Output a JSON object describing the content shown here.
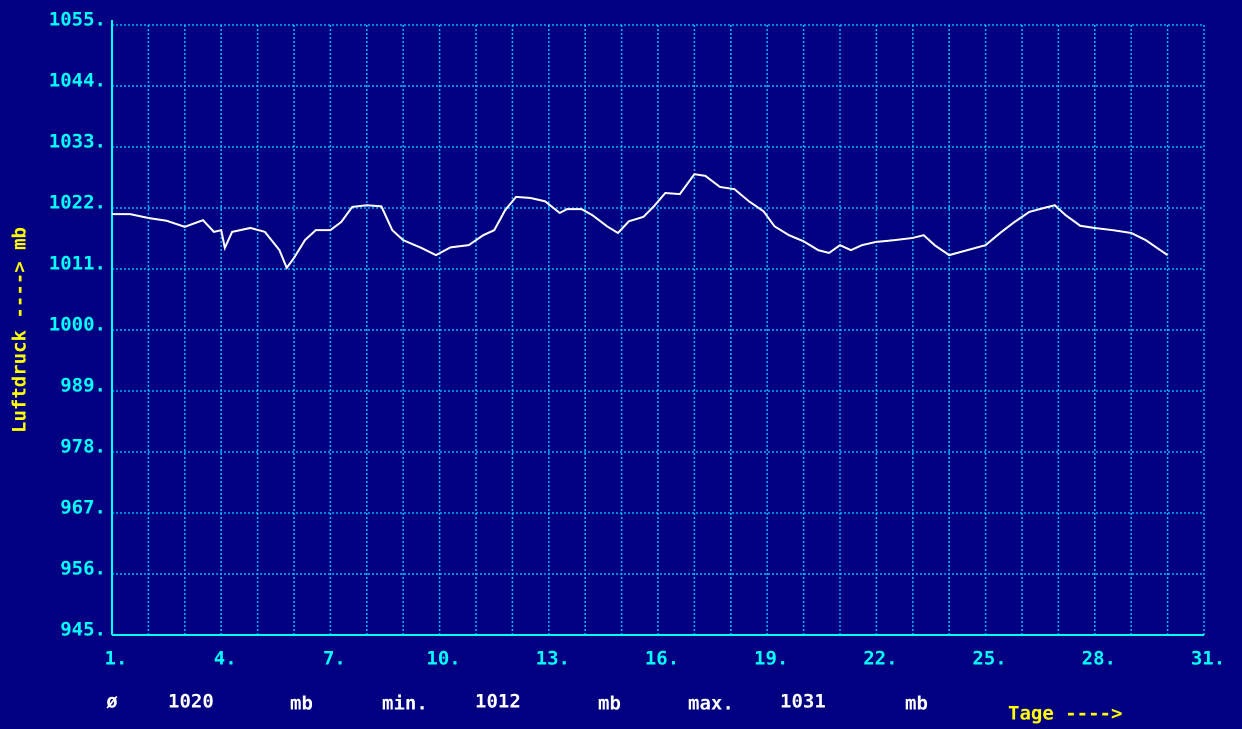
{
  "chart_data": {
    "type": "line",
    "y_axis_label": "Luftdruck ----> mb",
    "x_axis_label": "Tage ---->",
    "xlim": [
      1,
      31
    ],
    "xticks": [
      {
        "value": 1,
        "label": "1."
      },
      {
        "value": 4,
        "label": "4."
      },
      {
        "value": 7,
        "label": "7."
      },
      {
        "value": 10,
        "label": "10."
      },
      {
        "value": 13,
        "label": "13."
      },
      {
        "value": 16,
        "label": "16."
      },
      {
        "value": 19,
        "label": "19."
      },
      {
        "value": 22,
        "label": "22."
      },
      {
        "value": 25,
        "label": "25."
      },
      {
        "value": 28,
        "label": "28."
      },
      {
        "value": 31,
        "label": "31."
      }
    ],
    "minor_xticks": [
      2,
      3,
      5,
      6,
      8,
      9,
      11,
      12,
      14,
      15,
      17,
      18,
      20,
      21,
      23,
      24,
      26,
      27,
      29,
      30
    ],
    "ylim": [
      945,
      1055
    ],
    "yticks": [
      {
        "value": 945,
        "label": "945."
      },
      {
        "value": 956,
        "label": "956."
      },
      {
        "value": 967,
        "label": "967."
      },
      {
        "value": 978,
        "label": "978."
      },
      {
        "value": 989,
        "label": "989."
      },
      {
        "value": 1000,
        "label": "1000."
      },
      {
        "value": 1011,
        "label": "1011."
      },
      {
        "value": 1022,
        "label": "1022."
      },
      {
        "value": 1033,
        "label": "1033."
      },
      {
        "value": 1044,
        "label": "1044."
      },
      {
        "value": 1055,
        "label": "1055."
      }
    ],
    "grid": true,
    "series": [
      {
        "color": "#ffffff",
        "x": [
          1,
          1.5,
          2,
          2.5,
          3,
          3.5,
          3.8,
          4,
          4.1,
          4.3,
          4.8,
          5.2,
          5.6,
          5.8,
          6,
          6.3,
          6.6,
          7,
          7.3,
          7.6,
          8,
          8.4,
          8.7,
          9,
          9.5,
          9.9,
          10.3,
          10.8,
          11.2,
          11.5,
          11.8,
          12.1,
          12.5,
          12.9,
          13.3,
          13.5,
          13.9,
          14.2,
          14.6,
          14.9,
          15.2,
          15.6,
          15.9,
          16.2,
          16.6,
          17,
          17.3,
          17.7,
          18.1,
          18.5,
          18.9,
          19.2,
          19.6,
          20,
          20.4,
          20.7,
          21,
          21.3,
          21.6,
          22,
          22.5,
          23,
          23.3,
          23.6,
          24,
          24.5,
          25,
          25.4,
          25.8,
          26.2,
          26.6,
          26.9,
          27.2,
          27.6,
          28,
          28.5,
          29,
          29.4,
          29.8,
          30
        ],
        "values": [
          1020.9,
          1020.9,
          1020.2,
          1019.7,
          1018.6,
          1019.8,
          1017.7,
          1018,
          1014.8,
          1017.7,
          1018.4,
          1017.7,
          1014.4,
          1011.2,
          1013,
          1016.2,
          1018,
          1018,
          1019.5,
          1022.2,
          1022.5,
          1022.3,
          1018,
          1016.2,
          1014.8,
          1013.5,
          1014.9,
          1015.3,
          1017.1,
          1018,
          1021.6,
          1024,
          1023.8,
          1023.2,
          1021.1,
          1021.8,
          1021.8,
          1020.7,
          1018.7,
          1017.5,
          1019.6,
          1020.4,
          1022.4,
          1024.7,
          1024.5,
          1028.1,
          1027.8,
          1025.8,
          1025.4,
          1023.2,
          1021.4,
          1018.7,
          1017.1,
          1016,
          1014.4,
          1013.9,
          1015.3,
          1014.4,
          1015.3,
          1015.9,
          1016.2,
          1016.6,
          1017.1,
          1015.3,
          1013.5,
          1014.4,
          1015.3,
          1017.5,
          1019.5,
          1021.3,
          1022,
          1022.5,
          1020.7,
          1018.8,
          1018.4,
          1018,
          1017.5,
          1016.2,
          1014.4,
          1013.5
        ]
      }
    ]
  },
  "footer": {
    "mean_symbol": "ø",
    "mean": 1020,
    "unit": "mb",
    "min_label": "min.",
    "min": 1012,
    "max_label": "max.",
    "max": 1031
  }
}
